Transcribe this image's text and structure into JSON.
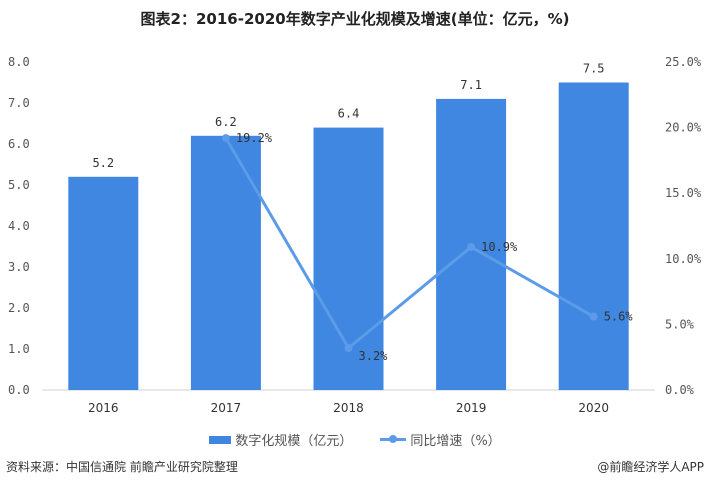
{
  "title": "图表2：2016-2020年数字产业化规模及增速(单位：亿元，%)",
  "chart_data": {
    "type": "bar+line",
    "title": "图表2：2016-2020年数字产业化规模及增速(单位：亿元，%)",
    "categories": [
      "2016",
      "2017",
      "2018",
      "2019",
      "2020"
    ],
    "series": [
      {
        "name": "数字化规模（亿元）",
        "type": "bar",
        "axis": "left",
        "values": [
          5.2,
          6.2,
          6.4,
          7.1,
          7.5
        ],
        "labels": [
          "5.2",
          "6.2",
          "6.4",
          "7.1",
          "7.5"
        ]
      },
      {
        "name": "同比增速（%）",
        "type": "line",
        "axis": "right",
        "values": [
          null,
          19.2,
          3.2,
          10.9,
          5.6
        ],
        "labels": [
          "",
          "19.2%",
          "3.2%",
          "10.9%",
          "5.6%"
        ]
      }
    ],
    "left_axis": {
      "ylim": [
        0,
        8
      ],
      "ticks": [
        "0.0",
        "1.0",
        "2.0",
        "3.0",
        "4.0",
        "5.0",
        "6.0",
        "7.0",
        "8.0"
      ]
    },
    "right_axis": {
      "ylim": [
        0,
        25
      ],
      "ticks": [
        "0.0%",
        "5.0%",
        "10.0%",
        "15.0%",
        "20.0%",
        "25.0%"
      ]
    },
    "legend_position": "bottom",
    "grid": false,
    "colors": {
      "bar": "#3f87e0",
      "line": "#5b9be8"
    }
  },
  "legend": {
    "bar": "数字化规模（亿元）",
    "line": "同比增速（%）"
  },
  "source": "资料来源：中国信通院 前瞻产业研究院整理",
  "brand": "@前瞻经济学人APP"
}
